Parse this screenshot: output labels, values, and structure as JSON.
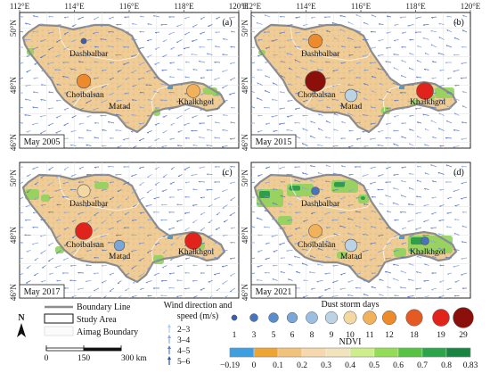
{
  "lon_ticks": [
    "112°E",
    "114°E",
    "116°E",
    "118°E",
    "120°E"
  ],
  "lat_ticks": [
    "50°N",
    "48°N",
    "46°N"
  ],
  "panels": [
    {
      "label": "(a)",
      "date": "May 2005",
      "stations": [
        {
          "name": "Dashbalbar",
          "days": 1
        },
        {
          "name": "Choibalsan",
          "days": 12
        },
        {
          "name": "Matad",
          "days": null
        },
        {
          "name": "Khalkhgol",
          "days": 11
        }
      ]
    },
    {
      "label": "(b)",
      "date": "May 2015",
      "stations": [
        {
          "name": "Dashbalbar",
          "days": 12
        },
        {
          "name": "Choibalsan",
          "days": 29
        },
        {
          "name": "Matad",
          "days": 9
        },
        {
          "name": "Khalkhgol",
          "days": 19
        }
      ]
    },
    {
      "label": "(c)",
      "date": "May 2017",
      "stations": [
        {
          "name": "Dashbalbar",
          "days": 10
        },
        {
          "name": "Choibalsan",
          "days": 19
        },
        {
          "name": "Matad",
          "days": 6
        },
        {
          "name": "Khalkhgol",
          "days": 19
        }
      ]
    },
    {
      "label": "(d)",
      "date": "May 2021",
      "stations": [
        {
          "name": "Dashbalbar",
          "days": 3
        },
        {
          "name": "Choibalsan",
          "days": 11
        },
        {
          "name": "Matad",
          "days": 9
        },
        {
          "name": "Khalkhgol",
          "days": 3
        }
      ]
    }
  ],
  "legend": {
    "items": [
      "Boundary Line",
      "Study Area",
      "Aimag Boundary"
    ],
    "wind_title_1": "Wind direction and",
    "wind_title_2": "speed (m/s)",
    "wind_classes": [
      "2–3",
      "3–4",
      "4–5",
      "5–6"
    ],
    "scale_labels": [
      "0",
      "150",
      "300 km"
    ],
    "north": "N",
    "dust_title": "Dust storm days",
    "dust_classes": [
      1,
      3,
      5,
      6,
      8,
      9,
      10,
      11,
      12,
      18,
      19,
      29
    ],
    "dust_colors": [
      "#3a5fb0",
      "#4873bd",
      "#5b8ccc",
      "#7aa6d8",
      "#9bbfe0",
      "#bcd3e6",
      "#f3d9a1",
      "#f2b15b",
      "#ec8a2c",
      "#e55a22",
      "#e0241c",
      "#8b0f0b"
    ],
    "ndvi_title": "NDVI",
    "ndvi_ticks": [
      "−0.19",
      "0",
      "0.1",
      "0.2",
      "0.3",
      "0.4",
      "0.5",
      "0.6",
      "0.7",
      "0.8",
      "0.83"
    ],
    "ndvi_colors": [
      "#3d9fe0",
      "#efa533",
      "#f2c27a",
      "#f5d8ad",
      "#f1e4bd",
      "#cdee8a",
      "#94dc55",
      "#58c343",
      "#2aa54a",
      "#178442"
    ]
  }
}
